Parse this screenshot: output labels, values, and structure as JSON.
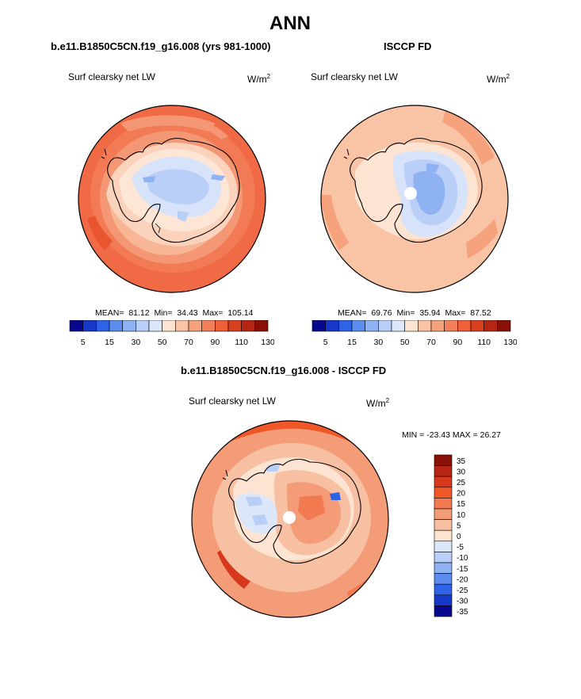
{
  "page": {
    "title": "ANN"
  },
  "panel1": {
    "case_title": "b.e11.B1850C5CN.f19_g16.008 (yrs 981-1000)",
    "variable": "Surf clearsky net LW",
    "units_base": "W/m",
    "units_exp": "2",
    "mean_label": "MEAN=",
    "mean": "81.12",
    "min_label": "Min=",
    "min": "34.43",
    "max_label": "Max=",
    "max": "105.14"
  },
  "panel2": {
    "case_title": "ISCCP FD",
    "variable": "Surf clearsky net LW",
    "units_base": "W/m",
    "units_exp": "2",
    "mean_label": "MEAN=",
    "mean": "69.76",
    "min_label": "Min=",
    "min": "35.94",
    "max_label": "Max=",
    "max": "87.52"
  },
  "panel3": {
    "case_title": "b.e11.B1850C5CN.f19_g16.008 - ISCCP FD",
    "variable": "Surf clearsky net LW",
    "units_base": "W/m",
    "units_exp": "2",
    "minmax_text": "MIN = -23.43 MAX = 26.27"
  },
  "colorbar_abs": {
    "colors": [
      "#08088f",
      "#1638c8",
      "#2f63e6",
      "#5c8ced",
      "#8fb2f3",
      "#b9cff7",
      "#dce7fa",
      "#fde4d2",
      "#f9c3a5",
      "#f6a27d",
      "#f2805b",
      "#ee5f3a",
      "#d9401f",
      "#b52512",
      "#8a0f07"
    ],
    "tick_labels": [
      "5",
      "15",
      "30",
      "50",
      "70",
      "90",
      "110",
      "130"
    ]
  },
  "colorbar_diff": {
    "colors_top_to_bottom": [
      "#8a0f07",
      "#b52512",
      "#d6381b",
      "#ef5628",
      "#f27a50",
      "#f49c78",
      "#f8c0a2",
      "#fde4d2",
      "#dce7fa",
      "#b9cff7",
      "#8fb2f3",
      "#5c8ced",
      "#2f63e6",
      "#1638c8",
      "#08088f"
    ],
    "tick_labels": [
      "35",
      "30",
      "25",
      "20",
      "15",
      "10",
      "5",
      "0",
      "-5",
      "-10",
      "-15",
      "-20",
      "-25",
      "-30",
      "-35"
    ]
  },
  "chart_data": [
    {
      "type": "heatmap",
      "subtype": "polar-stereographic-map",
      "title": "b.e11.B1850C5CN.f19_g16.008 (yrs 981-1000)",
      "field": "Surf clearsky net LW",
      "units": "W/m2",
      "contour_levels": [
        5,
        10,
        15,
        20,
        30,
        40,
        50,
        60,
        70,
        80,
        90,
        100,
        110,
        120,
        130
      ],
      "stats": {
        "mean": 81.12,
        "min": 34.43,
        "max": 105.14
      }
    },
    {
      "type": "heatmap",
      "subtype": "polar-stereographic-map",
      "title": "ISCCP FD",
      "field": "Surf clearsky net LW",
      "units": "W/m2",
      "contour_levels": [
        5,
        10,
        15,
        20,
        30,
        40,
        50,
        60,
        70,
        80,
        90,
        100,
        110,
        120,
        130
      ],
      "stats": {
        "mean": 69.76,
        "min": 35.94,
        "max": 87.52
      }
    },
    {
      "type": "heatmap",
      "subtype": "polar-stereographic-map",
      "title": "b.e11.B1850C5CN.f19_g16.008 - ISCCP FD",
      "field": "Surf clearsky net LW",
      "units": "W/m2",
      "contour_levels": [
        -35,
        -30,
        -25,
        -20,
        -15,
        -10,
        -5,
        0,
        5,
        10,
        15,
        20,
        25,
        30,
        35
      ],
      "stats": {
        "min": -23.43,
        "max": 26.27
      }
    }
  ]
}
